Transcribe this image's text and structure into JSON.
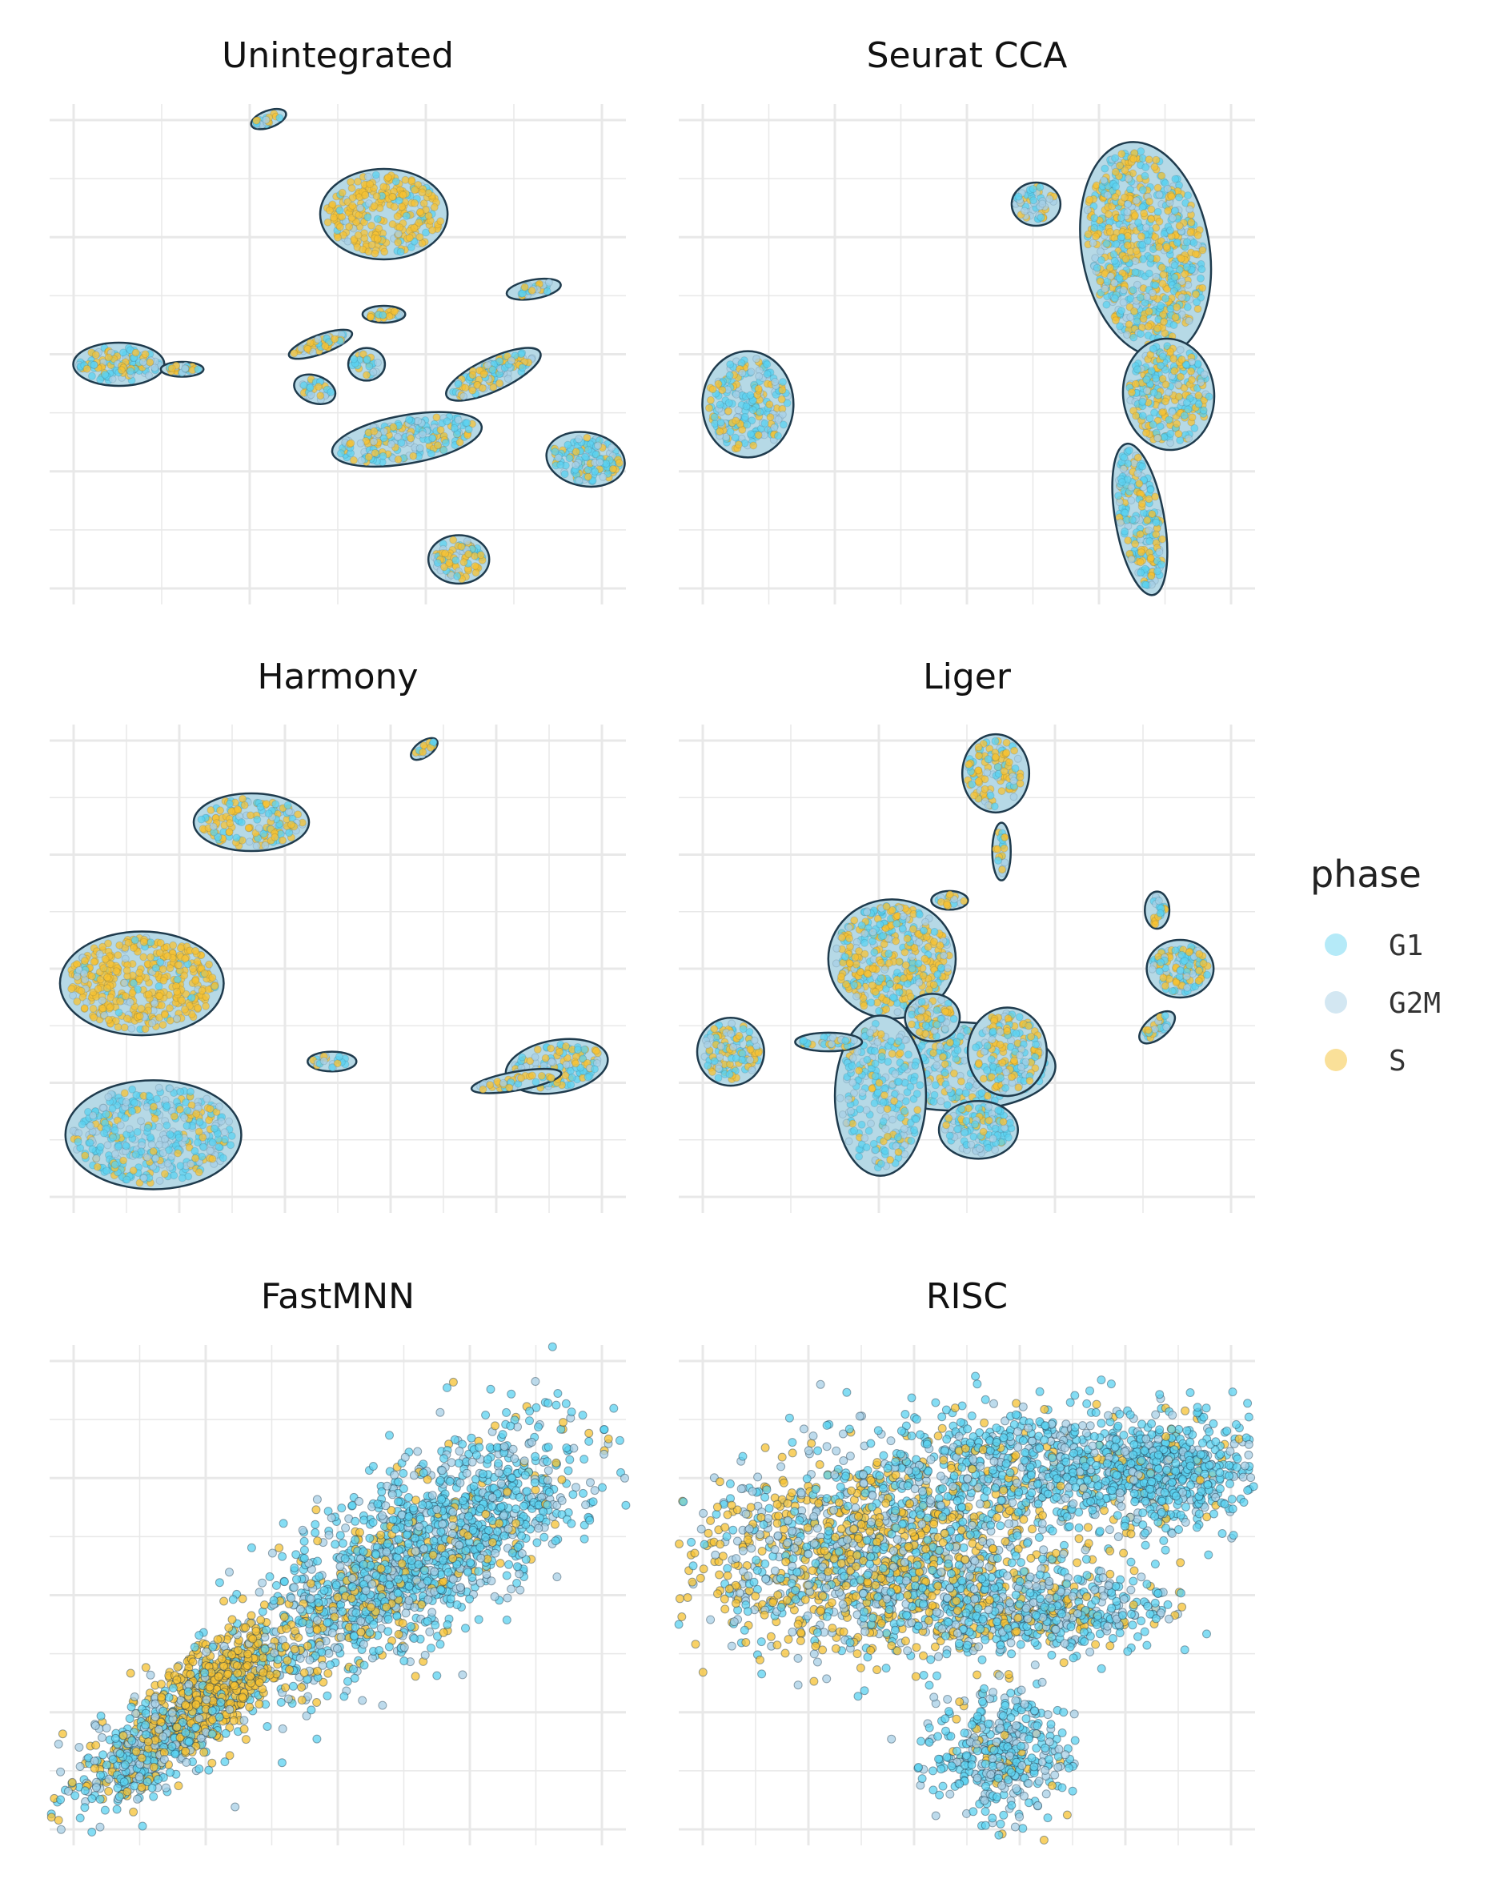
{
  "chart_data": {
    "type": "scatter",
    "grid": true,
    "axes_ticks_labels": false,
    "legend": {
      "title": "phase",
      "placement": "right",
      "entries": [
        {
          "label": "G1",
          "color": "#5bd1f0"
        },
        {
          "label": "G2M",
          "color": "#a7cfe6"
        },
        {
          "label": "S",
          "color": "#f5c233"
        }
      ]
    },
    "outline_color": "#1f3b4d",
    "panels": [
      {
        "title": "Unintegrated",
        "xlim": [
          0,
          100
        ],
        "ylim": [
          0,
          100
        ],
        "clusters": [
          {
            "cx": 38,
            "cy": 97,
            "rx": 2.5,
            "ry": 1,
            "rot": -20,
            "mix": [
              0.3,
              0.2,
              0.5
            ],
            "n": 18
          },
          {
            "cx": 58,
            "cy": 78,
            "rx": 10,
            "ry": 8,
            "rot": 0,
            "mix": [
              0.1,
              0.1,
              0.8
            ],
            "n": 260
          },
          {
            "cx": 84,
            "cy": 63,
            "rx": 4,
            "ry": 1.2,
            "rot": -10,
            "mix": [
              0.3,
              0.2,
              0.5
            ],
            "n": 30
          },
          {
            "cx": 12,
            "cy": 48,
            "rx": 7,
            "ry": 3.5,
            "rot": 0,
            "mix": [
              0.45,
              0.25,
              0.3
            ],
            "n": 120
          },
          {
            "cx": 23,
            "cy": 47,
            "rx": 3,
            "ry": 0.8,
            "rot": 0,
            "mix": [
              0.2,
              0.2,
              0.6
            ],
            "n": 22
          },
          {
            "cx": 47,
            "cy": 52,
            "rx": 5,
            "ry": 1.2,
            "rot": -20,
            "mix": [
              0.2,
              0.2,
              0.6
            ],
            "n": 40
          },
          {
            "cx": 55,
            "cy": 48,
            "rx": 2.5,
            "ry": 2.5,
            "rot": 0,
            "mix": [
              0.4,
              0.3,
              0.3
            ],
            "n": 25
          },
          {
            "cx": 58,
            "cy": 58,
            "rx": 3,
            "ry": 1,
            "rot": 0,
            "mix": [
              0.2,
              0.2,
              0.6
            ],
            "n": 20
          },
          {
            "cx": 62,
            "cy": 33,
            "rx": 12,
            "ry": 4,
            "rot": -10,
            "mix": [
              0.45,
              0.25,
              0.3
            ],
            "n": 200
          },
          {
            "cx": 77,
            "cy": 46,
            "rx": 8,
            "ry": 2.5,
            "rot": -25,
            "mix": [
              0.35,
              0.25,
              0.4
            ],
            "n": 110
          },
          {
            "cx": 46,
            "cy": 43,
            "rx": 3,
            "ry": 2,
            "rot": 20,
            "mix": [
              0.4,
              0.3,
              0.3
            ],
            "n": 30
          },
          {
            "cx": 93,
            "cy": 29,
            "rx": 6,
            "ry": 4.5,
            "rot": 10,
            "mix": [
              0.55,
              0.25,
              0.2
            ],
            "n": 140
          },
          {
            "cx": 71,
            "cy": 9,
            "rx": 4.5,
            "ry": 4,
            "rot": 0,
            "mix": [
              0.3,
              0.2,
              0.5
            ],
            "n": 80
          }
        ]
      },
      {
        "title": "Seurat CCA",
        "xlim": [
          0,
          100
        ],
        "ylim": [
          0,
          100
        ],
        "clusters": [
          {
            "cx": 81,
            "cy": 71,
            "rx": 10,
            "ry": 20,
            "rot": -10,
            "mix": [
              0.4,
              0.2,
              0.4
            ],
            "n": 700
          },
          {
            "cx": 85,
            "cy": 42,
            "rx": 7,
            "ry": 10,
            "rot": -5,
            "mix": [
              0.4,
              0.2,
              0.4
            ],
            "n": 260
          },
          {
            "cx": 80,
            "cy": 17,
            "rx": 3.5,
            "ry": 14,
            "rot": -10,
            "mix": [
              0.5,
              0.2,
              0.3
            ],
            "n": 200
          },
          {
            "cx": 62,
            "cy": 80,
            "rx": 3.5,
            "ry": 3.5,
            "rot": 0,
            "mix": [
              0.4,
              0.3,
              0.3
            ],
            "n": 50
          },
          {
            "cx": 12,
            "cy": 40,
            "rx": 7,
            "ry": 9.5,
            "rot": 0,
            "mix": [
              0.45,
              0.25,
              0.3
            ],
            "n": 220
          }
        ]
      },
      {
        "title": "Harmony",
        "xlim": [
          0,
          100
        ],
        "ylim": [
          0,
          100
        ],
        "clusters": [
          {
            "cx": 65,
            "cy": 95,
            "rx": 2,
            "ry": 0.9,
            "rot": -35,
            "mix": [
              0.2,
              0.1,
              0.7
            ],
            "n": 16
          },
          {
            "cx": 35,
            "cy": 80,
            "rx": 9,
            "ry": 5,
            "rot": 0,
            "mix": [
              0.3,
              0.2,
              0.5
            ],
            "n": 150
          },
          {
            "cx": 16,
            "cy": 47,
            "rx": 13,
            "ry": 9.5,
            "rot": 0,
            "mix": [
              0.1,
              0.1,
              0.8
            ],
            "n": 420
          },
          {
            "cx": 18,
            "cy": 16,
            "rx": 14,
            "ry": 10,
            "rot": 0,
            "mix": [
              0.55,
              0.3,
              0.15
            ],
            "n": 420
          },
          {
            "cx": 49,
            "cy": 31,
            "rx": 3.5,
            "ry": 1.3,
            "rot": 0,
            "mix": [
              0.4,
              0.3,
              0.3
            ],
            "n": 22
          },
          {
            "cx": 88,
            "cy": 30,
            "rx": 8,
            "ry": 4.5,
            "rot": -10,
            "mix": [
              0.45,
              0.25,
              0.3
            ],
            "n": 130
          },
          {
            "cx": 81,
            "cy": 27,
            "rx": 7,
            "ry": 1.2,
            "rot": -10,
            "mix": [
              0.3,
              0.2,
              0.5
            ],
            "n": 40
          }
        ]
      },
      {
        "title": "Liger",
        "xlim": [
          0,
          100
        ],
        "ylim": [
          0,
          100
        ],
        "clusters": [
          {
            "cx": 55,
            "cy": 90,
            "rx": 5,
            "ry": 7,
            "rot": 0,
            "mix": [
              0.3,
              0.2,
              0.5
            ],
            "n": 110
          },
          {
            "cx": 56,
            "cy": 74,
            "rx": 1,
            "ry": 5,
            "rot": 0,
            "mix": [
              0.3,
              0.2,
              0.5
            ],
            "n": 20
          },
          {
            "cx": 47,
            "cy": 64,
            "rx": 2.5,
            "ry": 1.2,
            "rot": 0,
            "mix": [
              0.4,
              0.3,
              0.3
            ],
            "n": 14
          },
          {
            "cx": 37,
            "cy": 52,
            "rx": 10,
            "ry": 11,
            "rot": 0,
            "mix": [
              0.3,
              0.2,
              0.5
            ],
            "n": 380
          },
          {
            "cx": 48,
            "cy": 30,
            "rx": 16,
            "ry": 8,
            "rot": 0,
            "mix": [
              0.55,
              0.25,
              0.2
            ],
            "n": 330
          },
          {
            "cx": 35,
            "cy": 24,
            "rx": 7,
            "ry": 15,
            "rot": 0,
            "mix": [
              0.5,
              0.3,
              0.2
            ],
            "n": 240
          },
          {
            "cx": 57,
            "cy": 33,
            "rx": 6,
            "ry": 8,
            "rot": 0,
            "mix": [
              0.45,
              0.2,
              0.35
            ],
            "n": 160
          },
          {
            "cx": 52,
            "cy": 17,
            "rx": 6,
            "ry": 5,
            "rot": 0,
            "mix": [
              0.55,
              0.3,
              0.15
            ],
            "n": 120
          },
          {
            "cx": 44,
            "cy": 40,
            "rx": 4,
            "ry": 4,
            "rot": 0,
            "mix": [
              0.3,
              0.2,
              0.5
            ],
            "n": 80
          },
          {
            "cx": 9,
            "cy": 33,
            "rx": 5,
            "ry": 6,
            "rot": 0,
            "mix": [
              0.4,
              0.2,
              0.4
            ],
            "n": 120
          },
          {
            "cx": 26,
            "cy": 35,
            "rx": 5,
            "ry": 1.2,
            "rot": 0,
            "mix": [
              0.4,
              0.3,
              0.3
            ],
            "n": 30
          },
          {
            "cx": 87,
            "cy": 50,
            "rx": 5,
            "ry": 5,
            "rot": 0,
            "mix": [
              0.45,
              0.2,
              0.35
            ],
            "n": 120
          },
          {
            "cx": 83,
            "cy": 38,
            "rx": 3,
            "ry": 1.5,
            "rot": -40,
            "mix": [
              0.3,
              0.2,
              0.5
            ],
            "n": 30
          },
          {
            "cx": 83,
            "cy": 62,
            "rx": 1.5,
            "ry": 3,
            "rot": 0,
            "mix": [
              0.3,
              0.2,
              0.5
            ],
            "n": 20
          }
        ]
      },
      {
        "title": "FastMNN",
        "xlim": [
          0,
          100
        ],
        "ylim": [
          0,
          100
        ],
        "clusters": [
          {
            "cx": 72,
            "cy": 65,
            "rx": 24,
            "ry": 14,
            "rot": -30,
            "mix": [
              0.65,
              0.25,
              0.1
            ],
            "n": 900
          },
          {
            "cx": 53,
            "cy": 48,
            "rx": 22,
            "ry": 13,
            "rot": -35,
            "mix": [
              0.5,
              0.3,
              0.2
            ],
            "n": 700
          },
          {
            "cx": 28,
            "cy": 31,
            "rx": 14,
            "ry": 7,
            "rot": -40,
            "mix": [
              0.15,
              0.15,
              0.7
            ],
            "n": 650
          },
          {
            "cx": 16,
            "cy": 18,
            "rx": 12,
            "ry": 7,
            "rot": -30,
            "mix": [
              0.4,
              0.3,
              0.3
            ],
            "n": 400
          }
        ],
        "sparse": true
      },
      {
        "title": "RISC",
        "xlim": [
          0,
          100
        ],
        "ylim": [
          0,
          100
        ],
        "clusters": [
          {
            "cx": 34,
            "cy": 58,
            "rx": 30,
            "ry": 18,
            "rot": 0,
            "mix": [
              0.3,
              0.25,
              0.45
            ],
            "n": 1500
          },
          {
            "cx": 66,
            "cy": 76,
            "rx": 30,
            "ry": 11,
            "rot": 0,
            "mix": [
              0.65,
              0.25,
              0.1
            ],
            "n": 800
          },
          {
            "cx": 85,
            "cy": 74,
            "rx": 13,
            "ry": 9,
            "rot": 0,
            "mix": [
              0.8,
              0.15,
              0.05
            ],
            "n": 400
          },
          {
            "cx": 56,
            "cy": 18,
            "rx": 11,
            "ry": 13,
            "rot": 0,
            "mix": [
              0.6,
              0.3,
              0.1
            ],
            "n": 420
          },
          {
            "cx": 63,
            "cy": 47,
            "rx": 20,
            "ry": 7,
            "rot": 0,
            "mix": [
              0.55,
              0.3,
              0.15
            ],
            "n": 500
          }
        ],
        "sparse": true
      }
    ]
  }
}
